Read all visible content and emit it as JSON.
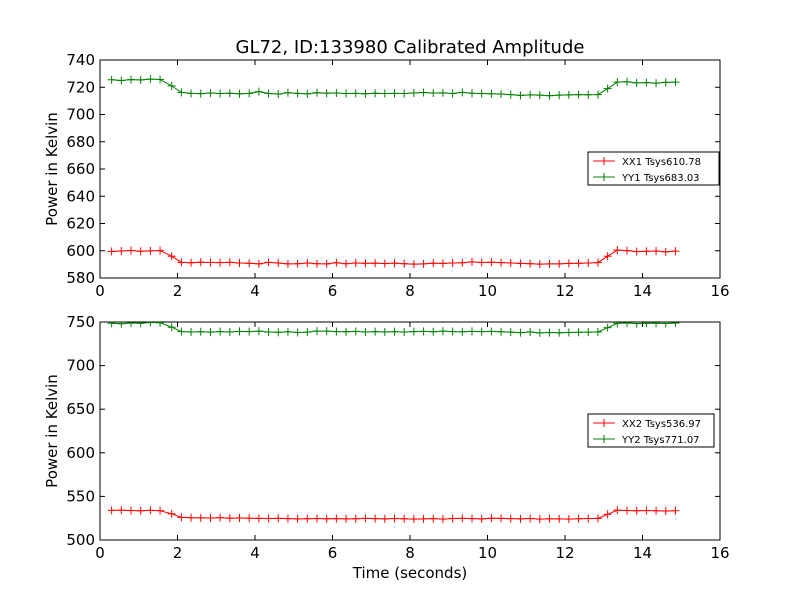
{
  "figure": {
    "title": "GL72, ID:133980 Calibrated Amplitude",
    "xlabel": "Time (seconds)"
  },
  "chart_data": [
    {
      "type": "line",
      "title": "GL72, ID:133980 Calibrated Amplitude",
      "xlabel": "",
      "ylabel": "Power in Kelvin",
      "xlim": [
        0,
        16
      ],
      "ylim": [
        580,
        740
      ],
      "x_ticks": [
        "0",
        "2",
        "4",
        "6",
        "8",
        "10",
        "12",
        "14",
        "16"
      ],
      "y_ticks": [
        "580",
        "600",
        "620",
        "640",
        "660",
        "680",
        "700",
        "720",
        "740"
      ],
      "grid": false,
      "legend_position": "right",
      "x": [
        0.3,
        0.55,
        0.8,
        1.05,
        1.3,
        1.55,
        1.85,
        2.1,
        2.35,
        2.6,
        2.85,
        3.1,
        3.35,
        3.6,
        3.85,
        4.1,
        4.35,
        4.6,
        4.85,
        5.1,
        5.35,
        5.6,
        5.85,
        6.1,
        6.35,
        6.6,
        6.85,
        7.1,
        7.35,
        7.6,
        7.85,
        8.1,
        8.35,
        8.6,
        8.85,
        9.1,
        9.35,
        9.6,
        9.85,
        10.1,
        10.35,
        10.6,
        10.85,
        11.1,
        11.35,
        11.6,
        11.85,
        12.1,
        12.35,
        12.6,
        12.85,
        13.1,
        13.35,
        13.6,
        13.85,
        14.1,
        14.35,
        14.6,
        14.85
      ],
      "series": [
        {
          "name": "XX1 Tsys610.78",
          "color": "#ff0000",
          "values": [
            599.5,
            599.8,
            600.2,
            599.6,
            599.9,
            600.1,
            596.0,
            591.5,
            591.2,
            591.6,
            591.4,
            591.3,
            591.5,
            591.0,
            590.8,
            590.4,
            591.5,
            591.0,
            590.4,
            590.5,
            591.0,
            590.5,
            590.4,
            591.2,
            590.5,
            591.0,
            590.8,
            590.9,
            590.6,
            590.9,
            590.5,
            590.2,
            590.4,
            590.9,
            590.7,
            591.0,
            591.2,
            591.8,
            591.4,
            591.6,
            591.3,
            591.0,
            590.7,
            590.5,
            590.2,
            590.4,
            590.4,
            590.7,
            590.8,
            591.0,
            591.3,
            596.0,
            600.5,
            600.1,
            599.4,
            599.6,
            599.8,
            599.2,
            599.7
          ]
        },
        {
          "name": "YY1 Tsys683.03",
          "color": "#008000",
          "values": [
            725.5,
            725.0,
            725.6,
            725.4,
            726.0,
            725.7,
            721.0,
            716.2,
            715.5,
            715.3,
            715.8,
            715.4,
            715.6,
            715.2,
            715.5,
            716.8,
            715.4,
            715.0,
            716.0,
            715.5,
            715.2,
            716.0,
            715.6,
            715.8,
            715.4,
            715.5,
            715.2,
            715.6,
            715.4,
            715.5,
            715.4,
            715.8,
            716.1,
            715.8,
            715.9,
            715.4,
            716.2,
            715.6,
            715.4,
            715.2,
            715.0,
            714.6,
            714.0,
            714.4,
            714.2,
            713.8,
            714.2,
            714.4,
            714.6,
            714.5,
            714.6,
            719.0,
            723.8,
            724.0,
            723.2,
            723.4,
            723.0,
            723.6,
            723.8
          ]
        }
      ]
    },
    {
      "type": "line",
      "xlabel": "Time (seconds)",
      "ylabel": "Power in Kelvin",
      "xlim": [
        0,
        16
      ],
      "ylim": [
        500,
        750
      ],
      "x_ticks": [
        "0",
        "2",
        "4",
        "6",
        "8",
        "10",
        "12",
        "14",
        "16"
      ],
      "y_ticks": [
        "500",
        "550",
        "600",
        "650",
        "700",
        "750"
      ],
      "grid": false,
      "legend_position": "right",
      "x": [
        0.3,
        0.55,
        0.8,
        1.05,
        1.3,
        1.55,
        1.85,
        2.1,
        2.35,
        2.6,
        2.85,
        3.1,
        3.35,
        3.6,
        3.85,
        4.1,
        4.35,
        4.6,
        4.85,
        5.1,
        5.35,
        5.6,
        5.85,
        6.1,
        6.35,
        6.6,
        6.85,
        7.1,
        7.35,
        7.6,
        7.85,
        8.1,
        8.35,
        8.6,
        8.85,
        9.1,
        9.35,
        9.6,
        9.85,
        10.1,
        10.35,
        10.6,
        10.85,
        11.1,
        11.35,
        11.6,
        11.85,
        12.1,
        12.35,
        12.6,
        12.85,
        13.1,
        13.35,
        13.6,
        13.85,
        14.1,
        14.35,
        14.6,
        14.85
      ],
      "series": [
        {
          "name": "XX2 Tsys536.97",
          "color": "#ff0000",
          "values": [
            534.0,
            534.2,
            533.8,
            533.5,
            534.0,
            533.6,
            530.0,
            526.0,
            525.5,
            525.4,
            525.2,
            525.6,
            525.0,
            525.3,
            525.0,
            524.8,
            524.6,
            524.8,
            524.5,
            524.2,
            524.4,
            524.6,
            524.3,
            524.5,
            524.2,
            524.4,
            524.8,
            524.5,
            524.2,
            524.6,
            524.3,
            524.0,
            524.2,
            524.5,
            524.0,
            524.6,
            524.8,
            524.5,
            524.2,
            525.0,
            524.8,
            524.5,
            524.2,
            524.6,
            524.0,
            524.3,
            524.2,
            524.0,
            524.4,
            524.6,
            524.8,
            529.5,
            534.2,
            533.8,
            533.5,
            533.8,
            533.5,
            533.2,
            533.6
          ]
        },
        {
          "name": "YY2 Tsys771.07",
          "color": "#008000",
          "values": [
            748.5,
            748.0,
            748.8,
            748.6,
            749.5,
            749.2,
            744.0,
            739.0,
            738.6,
            738.8,
            738.4,
            739.0,
            738.6,
            739.2,
            739.0,
            739.5,
            738.5,
            738.2,
            738.8,
            738.0,
            738.4,
            739.6,
            739.5,
            739.0,
            738.8,
            739.2,
            738.5,
            739.0,
            738.6,
            738.9,
            738.5,
            739.0,
            739.2,
            738.8,
            739.5,
            739.0,
            738.8,
            739.2,
            739.0,
            739.2,
            738.8,
            738.4,
            737.8,
            738.6,
            737.5,
            738.0,
            737.6,
            738.0,
            738.2,
            738.4,
            738.6,
            743.5,
            748.5,
            748.8,
            748.2,
            748.5,
            748.6,
            748.3,
            748.8
          ]
        }
      ]
    }
  ]
}
